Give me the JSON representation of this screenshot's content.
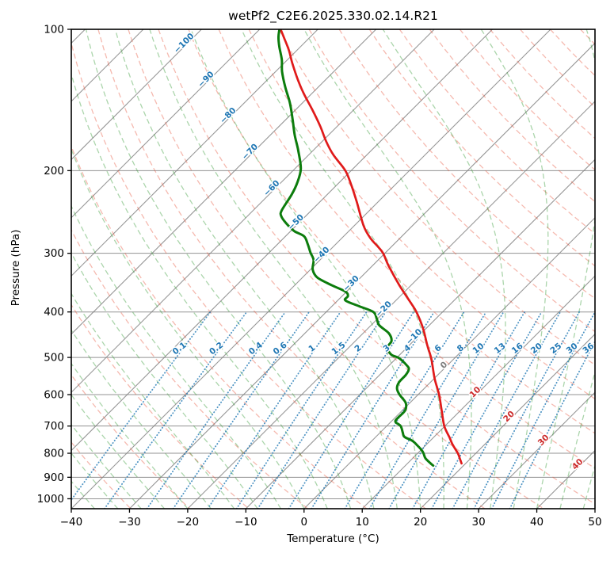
{
  "title": "wetPf2_C2E6.2025.330.02.14.R21",
  "chart_data": {
    "type": "line",
    "subtype": "skewT_logP_sounding",
    "title": "wetPf2_C2E6.2025.330.02.14.R21",
    "xlabel": "Temperature (°C)",
    "ylabel": "Pressure (hPa)",
    "xlim": [
      -40,
      50
    ],
    "pressure_lim": [
      100,
      1050
    ],
    "x_ticks": [
      -40,
      -30,
      -20,
      -10,
      0,
      10,
      20,
      30,
      40,
      50
    ],
    "pressure_ticks": [
      100,
      200,
      300,
      400,
      500,
      600,
      700,
      800,
      900,
      1000
    ],
    "grid": "horizontal gray line at each labeled pressure level",
    "legend_position": "none",
    "isotherms": {
      "min": -120,
      "max": 50,
      "step": 10,
      "skew": "45deg",
      "inline_labels": [
        {
          "t": -100,
          "p": 108
        },
        {
          "t": -90,
          "p": 129
        },
        {
          "t": -80,
          "p": 154
        },
        {
          "t": -70,
          "p": 184
        },
        {
          "t": -60,
          "p": 220
        },
        {
          "t": -50,
          "p": 260
        },
        {
          "t": -40,
          "p": 305
        },
        {
          "t": -30,
          "p": 351
        },
        {
          "t": -20,
          "p": 398
        },
        {
          "t": -10,
          "p": 456
        },
        {
          "t": 0,
          "p": 524
        },
        {
          "t": 10,
          "p": 598
        },
        {
          "t": 20,
          "p": 674
        },
        {
          "t": 30,
          "p": 757
        },
        {
          "t": 40,
          "p": 852
        }
      ]
    },
    "dry_adiabats_theta_K": {
      "min": 230,
      "max": 460,
      "step": 10
    },
    "moist_adiabats_startC_at_1050": {
      "min": -56,
      "max": 48,
      "step": 4
    },
    "mixing_ratio_g_per_kg": [
      0.1,
      0.2,
      0.4,
      0.6,
      1,
      1.5,
      2,
      3,
      4,
      6,
      8,
      10,
      13,
      16,
      20,
      25,
      30,
      36
    ],
    "mixing_line_top_pressure": 400,
    "mixing_label_pressure": 485,
    "series": [
      {
        "name": "temperature",
        "color": "#e01a1a",
        "points_p_T": [
          [
            100,
            -86.4
          ],
          [
            105,
            -84.0
          ],
          [
            111,
            -81.3
          ],
          [
            118,
            -78.6
          ],
          [
            128,
            -74.8
          ],
          [
            137,
            -71.4
          ],
          [
            149,
            -66.9
          ],
          [
            161,
            -62.9
          ],
          [
            173,
            -59.4
          ],
          [
            185,
            -55.8
          ],
          [
            200,
            -51.0
          ],
          [
            216,
            -47.2
          ],
          [
            234,
            -43.5
          ],
          [
            262,
            -38.4
          ],
          [
            278,
            -35.2
          ],
          [
            291,
            -32.2
          ],
          [
            300,
            -30.3
          ],
          [
            319,
            -27.2
          ],
          [
            351,
            -22.0
          ],
          [
            384,
            -16.8
          ],
          [
            400,
            -14.5
          ],
          [
            432,
            -10.7
          ],
          [
            470,
            -7.0
          ],
          [
            502,
            -4.0
          ],
          [
            539,
            -1.1
          ],
          [
            560,
            0.5
          ],
          [
            600,
            3.6
          ],
          [
            649,
            6.8
          ],
          [
            700,
            9.9
          ],
          [
            741,
            12.8
          ],
          [
            765,
            14.4
          ],
          [
            800,
            16.9
          ],
          [
            820,
            18.1
          ],
          [
            841,
            19.3
          ]
        ]
      },
      {
        "name": "dewpoint",
        "color": "#0c7c0c",
        "points_p_T": [
          [
            100,
            -86.6
          ],
          [
            104,
            -85.4
          ],
          [
            109,
            -83.6
          ],
          [
            116,
            -81.0
          ],
          [
            123,
            -78.9
          ],
          [
            133,
            -75.6
          ],
          [
            143,
            -72.3
          ],
          [
            155,
            -69.0
          ],
          [
            168,
            -65.8
          ],
          [
            181,
            -62.6
          ],
          [
            198,
            -59.0
          ],
          [
            212,
            -57.2
          ],
          [
            225,
            -56.1
          ],
          [
            243,
            -55.1
          ],
          [
            250,
            -54.2
          ],
          [
            259,
            -52.1
          ],
          [
            269,
            -49.4
          ],
          [
            276,
            -46.8
          ],
          [
            287,
            -44.8
          ],
          [
            299,
            -42.9
          ],
          [
            310,
            -41.1
          ],
          [
            325,
            -39.6
          ],
          [
            338,
            -37.4
          ],
          [
            351,
            -33.6
          ],
          [
            362,
            -30.2
          ],
          [
            370,
            -29.0
          ],
          [
            378,
            -28.7
          ],
          [
            389,
            -25.3
          ],
          [
            400,
            -21.9
          ],
          [
            414,
            -20.1
          ],
          [
            427,
            -18.6
          ],
          [
            444,
            -15.6
          ],
          [
            461,
            -13.8
          ],
          [
            476,
            -13.4
          ],
          [
            493,
            -11.5
          ],
          [
            502,
            -9.5
          ],
          [
            522,
            -6.7
          ],
          [
            531,
            -5.9
          ],
          [
            545,
            -5.5
          ],
          [
            565,
            -5.4
          ],
          [
            582,
            -4.7
          ],
          [
            600,
            -3.2
          ],
          [
            625,
            -0.7
          ],
          [
            649,
            0.5
          ],
          [
            673,
            0.5
          ],
          [
            686,
            0.8
          ],
          [
            700,
            2.4
          ],
          [
            723,
            3.9
          ],
          [
            738,
            4.9
          ],
          [
            753,
            7.0
          ],
          [
            771,
            8.7
          ],
          [
            786,
            10.0
          ],
          [
            800,
            11.0
          ],
          [
            820,
            12.2
          ],
          [
            840,
            13.9
          ],
          [
            850,
            14.8
          ]
        ]
      }
    ],
    "colors": {
      "isotherm": "rgba(125,125,125,0.8)",
      "grid": "rgba(128,128,128,0.85)",
      "dry_adiabat": "rgba(230,80,55,0.4)",
      "moist_adiabat": "rgba(44,150,44,0.4)",
      "mixing_ratio": "rgba(31,119,180,0.78)",
      "label_negative": "#1f77b4",
      "label_zero": "#7f7f7f",
      "label_positive": "#cc2a2a",
      "mixing_label": "#1f77b4",
      "spine": "#000000",
      "tick_label": "#000000"
    }
  }
}
